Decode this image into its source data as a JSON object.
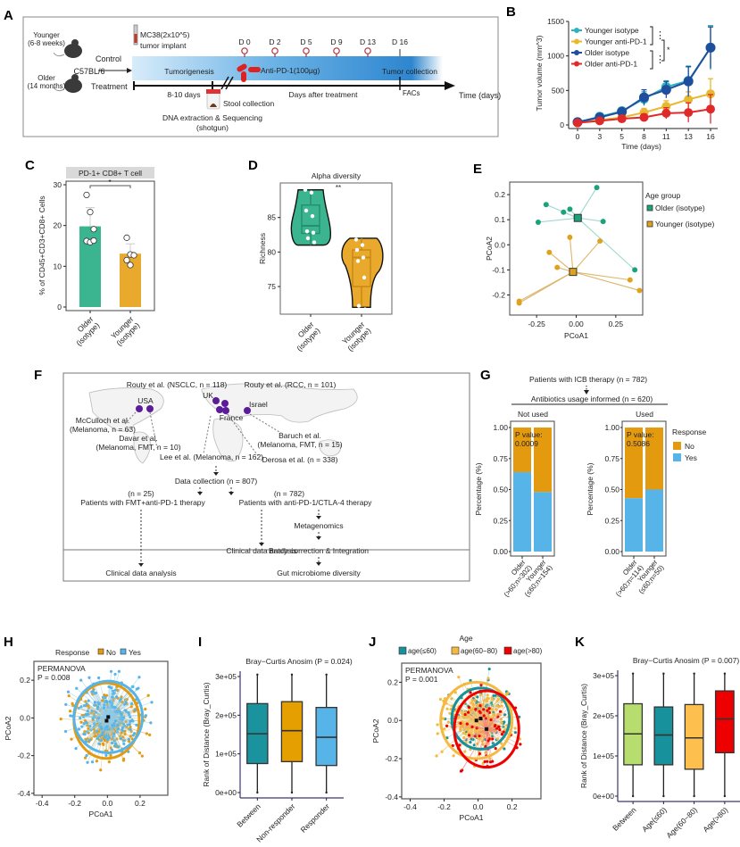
{
  "panel_labels": {
    "A": "A",
    "B": "B",
    "C": "C",
    "D": "D",
    "E": "E",
    "F": "F",
    "G": "G",
    "H": "H",
    "I": "I",
    "J": "J",
    "K": "K"
  },
  "colors": {
    "teal_light": "#2bb3c0",
    "gold": "#e8b830",
    "navy": "#1f4e9c",
    "red": "#e02a2a",
    "green": "#3bb58f",
    "amber": "#e9a92c",
    "orange_no": "#e39a0e",
    "blue_yes": "#56b4e9",
    "dark_teal": "#17919b",
    "lime": "#b6dd6e",
    "light_orange": "#fdc04f",
    "bright_red": "#ee0000",
    "purple": "#5b1b9a"
  },
  "schematic": {
    "younger_mouse": "Younger\n(6-8 weeks)",
    "older_mouse": "Older\n(14 months)",
    "strain": "C57BL/6",
    "control": "Control",
    "treatment": "Treatment",
    "implant_line1": "MC38(2x10^5)",
    "implant_line2": "tumor implant",
    "tumorigenesis": "Tumorigenesis",
    "duration": "8-10 days",
    "stool": "Stool collection",
    "dna_line1": "DNA extraction & Sequencing",
    "dna_line2": "(shotgun)",
    "drug": "Anti-PD-1(100µg)",
    "days_after": "Days after treatment",
    "tumor_collection": "Tumor collection",
    "facs": "FACs",
    "time_axis": "Time (days)",
    "day_marks": [
      "D 0",
      "D 2",
      "D 5",
      "D 9",
      "D 13"
    ],
    "final_day": "D 16"
  },
  "chart_data": [
    {
      "id": "B",
      "type": "line",
      "title": "",
      "xlabel": "Time (days)",
      "ylabel": "Tumor volume (mm^3)",
      "x": [
        0,
        3,
        5,
        8,
        11,
        13,
        16
      ],
      "xticks": [
        "0",
        "3",
        "5",
        "8",
        "11",
        "13",
        "16"
      ],
      "ylim": [
        0,
        1500
      ],
      "yticks": [
        "0",
        "500",
        "1000",
        "1500"
      ],
      "legend": "top-left",
      "significance": [
        "***",
        "***",
        "*"
      ],
      "series": [
        {
          "name": "Younger isotype",
          "values": [
            40,
            120,
            200,
            380,
            550,
            640,
            1120
          ],
          "err": [
            15,
            30,
            40,
            100,
            90,
            200,
            320
          ]
        },
        {
          "name": "Younger anti-PD-1",
          "values": [
            35,
            70,
            110,
            180,
            270,
            370,
            450
          ],
          "err": [
            15,
            25,
            30,
            60,
            80,
            110,
            220
          ]
        },
        {
          "name": "Older isotype",
          "values": [
            40,
            110,
            190,
            400,
            510,
            630,
            1120
          ],
          "err": [
            15,
            30,
            40,
            110,
            120,
            220,
            300
          ]
        },
        {
          "name": "Older anti-PD-1",
          "values": [
            30,
            60,
            90,
            110,
            170,
            180,
            230
          ],
          "err": [
            12,
            20,
            30,
            50,
            80,
            140,
            210
          ]
        }
      ]
    },
    {
      "id": "C",
      "type": "bar",
      "title": "PD-1+ CD8+ T cell",
      "ylabel": "% of CD45+CD3+CD8+ Cells",
      "categories": [
        "Older\n(isotype)",
        "Younger\n(isotype)"
      ],
      "values": [
        19.8,
        13.1
      ],
      "err": [
        4.6,
        2.4
      ],
      "points": [
        [
          27.5,
          23.3,
          19.1,
          16.2,
          15.9,
          16.3
        ],
        [
          17.0,
          12.9,
          12.7,
          11.5,
          10.3
        ]
      ],
      "ylim": [
        0,
        30
      ],
      "yticks": [
        "0",
        "10",
        "20",
        "30"
      ],
      "significance": "*"
    },
    {
      "id": "D",
      "type": "violin",
      "title": "Alpha diversity",
      "ylabel": "Richness",
      "categories": [
        "Older\n(isotype)",
        "Younger\n(isotype)"
      ],
      "ylim": [
        71,
        90
      ],
      "yticks": [
        "75",
        "80",
        "85"
      ],
      "box": [
        {
          "q1": 82.7,
          "median": 83.8,
          "q3": 86.8,
          "min": 81,
          "max": 89
        },
        {
          "q1": 75,
          "median": 79.2,
          "q3": 80.3,
          "min": 72,
          "max": 82
        }
      ],
      "points": [
        [
          89,
          88.6,
          86,
          85.2,
          83,
          82.8,
          82,
          81.4
        ],
        [
          81.8,
          81,
          80.3,
          79.2,
          78.7,
          76.3,
          72.2,
          71.7
        ]
      ],
      "significance": "**"
    },
    {
      "id": "E",
      "type": "scatter",
      "xlabel": "PCoA1",
      "ylabel": "PCoA2",
      "xlim": [
        -0.42,
        0.42
      ],
      "ylim": [
        -0.28,
        0.25
      ],
      "xticks": [
        "-0.25",
        "0.00",
        "0.25"
      ],
      "yticks": [
        "-0.2",
        "-0.1",
        "0.0",
        "0.1",
        "0.2"
      ],
      "legend_title": "Age group",
      "legend": "right",
      "series": [
        {
          "name": "Older (isotype)",
          "centroid": [
            0.01,
            0.107
          ],
          "points": [
            [
              0.13,
              0.228
            ],
            [
              -0.19,
              0.16
            ],
            [
              -0.08,
              0.13
            ],
            [
              -0.04,
              0.142
            ],
            [
              -0.24,
              0.09
            ],
            [
              0.17,
              0.093
            ],
            [
              0.0,
              0.108
            ],
            [
              0.37,
              -0.1
            ]
          ]
        },
        {
          "name": "Younger (isotype)",
          "centroid": [
            -0.02,
            -0.108
          ],
          "points": [
            [
              -0.04,
              0.03
            ],
            [
              0.15,
              0.015
            ],
            [
              -0.17,
              -0.03
            ],
            [
              -0.12,
              -0.09
            ],
            [
              0.34,
              -0.14
            ],
            [
              0.4,
              -0.182
            ],
            [
              -0.36,
              -0.225
            ],
            [
              -0.36,
              -0.232
            ]
          ]
        }
      ]
    },
    {
      "id": "G",
      "type": "stacked_bar",
      "header_line1": "Patients with ICB therapy (n = 782)",
      "header_line2": "Antibiotics usage informed (n = 620)",
      "ylabel": "Percentage (%)",
      "ylim": [
        0,
        1
      ],
      "yticks": [
        "0.00",
        "0.25",
        "0.50",
        "0.75",
        "1.00"
      ],
      "legend_title": "Response",
      "legend": [
        "No",
        "Yes"
      ],
      "facets": [
        {
          "name": "Not used",
          "pvalue_label": "P value:",
          "pvalue": "0.0009",
          "categories": [
            "Older\n(>60;n=302)",
            "Younger\n(≤60;n=154)"
          ],
          "yes": [
            0.64,
            0.48
          ]
        },
        {
          "name": "Used",
          "pvalue_label": "P value:",
          "pvalue": "0.5086",
          "categories": [
            "Older\n(>60;n=114)",
            "Younger\n(≤60;n=50)"
          ],
          "yes": [
            0.43,
            0.5
          ]
        }
      ]
    },
    {
      "id": "H",
      "type": "scatter",
      "xlabel": "PCoA1",
      "ylabel": "PCoA2",
      "xlim": [
        -0.45,
        0.37
      ],
      "ylim": [
        -0.41,
        0.3
      ],
      "xticks": [
        "-0.4",
        "-0.2",
        "0.0",
        "0.2"
      ],
      "yticks": [
        "-0.4",
        "-0.2",
        "0.0",
        "0.2"
      ],
      "legend_title": "Response",
      "legend": "top",
      "annotation": "PERMANOVA\nP = 0.008",
      "series": [
        {
          "name": "No",
          "centroid": [
            -0.005,
            -0.015
          ],
          "ellipse": [
            0.2,
            0.2
          ]
        },
        {
          "name": "Yes",
          "centroid": [
            0.005,
            0.005
          ],
          "ellipse": [
            0.21,
            0.19
          ]
        }
      ]
    },
    {
      "id": "I",
      "type": "box",
      "title": "Bray−Curtis Anosim (P = 0.024)",
      "ylabel": "Rank of Distance (Bray_Curtis)",
      "categories": [
        "Between",
        "Non-responder",
        "Responder"
      ],
      "ylim": [
        0,
        310000
      ],
      "yticks": [
        "0e+00",
        "1e+05",
        "2e+05",
        "3e+05"
      ],
      "boxes": [
        {
          "min": 0,
          "q1": 75000,
          "median": 152000,
          "q3": 230000,
          "max": 305000
        },
        {
          "min": 0,
          "q1": 80000,
          "median": 160000,
          "q3": 235000,
          "max": 305000
        },
        {
          "min": 0,
          "q1": 70000,
          "median": 143000,
          "q3": 220000,
          "max": 305000
        }
      ]
    },
    {
      "id": "J",
      "type": "scatter",
      "xlabel": "PCoA1",
      "ylabel": "PCoA2",
      "xlim": [
        -0.45,
        0.37
      ],
      "ylim": [
        -0.41,
        0.3
      ],
      "xticks": [
        "-0.4",
        "-0.2",
        "0.0",
        "0.2"
      ],
      "yticks": [
        "-0.4",
        "-0.2",
        "0.0",
        "0.2"
      ],
      "legend_title": "Age",
      "legend": "top",
      "annotation": "PERMANOVA\nP = 0.001",
      "series": [
        {
          "name": "age(≤60)",
          "centroid": [
            0.015,
            0.01
          ],
          "ellipse": [
            0.17,
            0.16
          ]
        },
        {
          "name": "age(60−80)",
          "centroid": [
            -0.01,
            0.0
          ],
          "ellipse": [
            0.21,
            0.2
          ]
        },
        {
          "name": "age(>80)",
          "centroid": [
            0.05,
            -0.045
          ],
          "ellipse": [
            0.19,
            0.2
          ]
        }
      ]
    },
    {
      "id": "K",
      "type": "box",
      "title": "Bray−Curtis Anosim (P = 0.007)",
      "ylabel": "Rank of Distance (Bray_Curtis)",
      "categories": [
        "Between",
        "Age(≤60)",
        "Age(60−80)",
        "Age(>80)"
      ],
      "ylim": [
        0,
        310000
      ],
      "yticks": [
        "0e+00",
        "1e+05",
        "2e+05",
        "3e+05"
      ],
      "boxes": [
        {
          "min": 0,
          "q1": 78000,
          "median": 155000,
          "q3": 230000,
          "max": 305000
        },
        {
          "min": 0,
          "q1": 78000,
          "median": 152000,
          "q3": 222000,
          "max": 305000
        },
        {
          "min": 0,
          "q1": 67000,
          "median": 145000,
          "q3": 228000,
          "max": 305000
        },
        {
          "min": 0,
          "q1": 108000,
          "median": 192000,
          "q3": 262000,
          "max": 305000
        }
      ]
    }
  ],
  "flowchart": {
    "studies": [
      "Routy et al. (NSCLC, n = 118)",
      "Routy et al. (RCC, n = 101)",
      "McCulloch et al.\n(Melanoma, n = 63)",
      "Davar et al.\n(Melanoma, FMT, n = 10)",
      "Lee et al. (Melanoma, n = 162)",
      "Baruch et al.\n(Melanoma, FMT, n = 15)",
      "Derosa et al. (n = 338)"
    ],
    "countries": [
      "USA",
      "UK",
      "France",
      "Israel"
    ],
    "data_collection": "Data collection (n = 807)",
    "left_n": "(n = 25)",
    "left_branch": "Patients with FMT+anti-PD-1 therapy",
    "right_n": "(n = 782)",
    "right_branch": "Patients with anti-PD-1/CTLA-4 therapy",
    "metagenomics": "Metagenomics",
    "batch": "Batch correction & Integration",
    "clinical_mid": "Clinical data analysis",
    "clinical_left": "Clinical data analysis",
    "diversity": "Gut microbiome diversity"
  }
}
